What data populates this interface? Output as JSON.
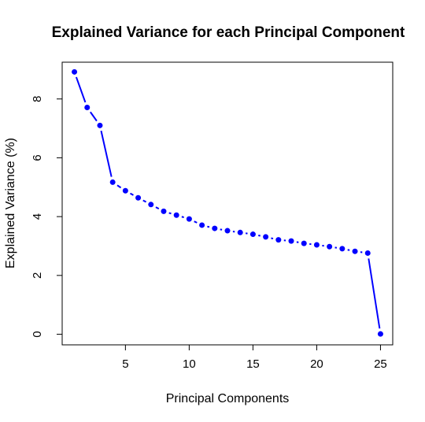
{
  "chart_data": {
    "type": "line",
    "title": "Explained Variance for each Principal Component",
    "xlabel": "Principal Components",
    "ylabel": "Explained Variance (%)",
    "xlim": [
      0.04,
      25.96
    ],
    "ylim": [
      -0.36,
      9.25
    ],
    "x_ticks": [
      5,
      10,
      15,
      20,
      25
    ],
    "y_ticks": [
      0,
      2,
      4,
      6,
      8
    ],
    "grid": false,
    "line_style": "both (points joined by line segments)",
    "series": [
      {
        "color": "#0000ff",
        "x": [
          1,
          2,
          3,
          4,
          5,
          6,
          7,
          8,
          9,
          10,
          11,
          12,
          13,
          14,
          15,
          16,
          17,
          18,
          19,
          20,
          21,
          22,
          23,
          24,
          25
        ],
        "values": [
          8.92,
          7.71,
          7.1,
          5.17,
          4.88,
          4.64,
          4.41,
          4.18,
          4.05,
          3.92,
          3.71,
          3.6,
          3.52,
          3.46,
          3.4,
          3.31,
          3.21,
          3.17,
          3.09,
          3.04,
          2.98,
          2.91,
          2.82,
          2.76,
          0.01
        ]
      }
    ]
  }
}
